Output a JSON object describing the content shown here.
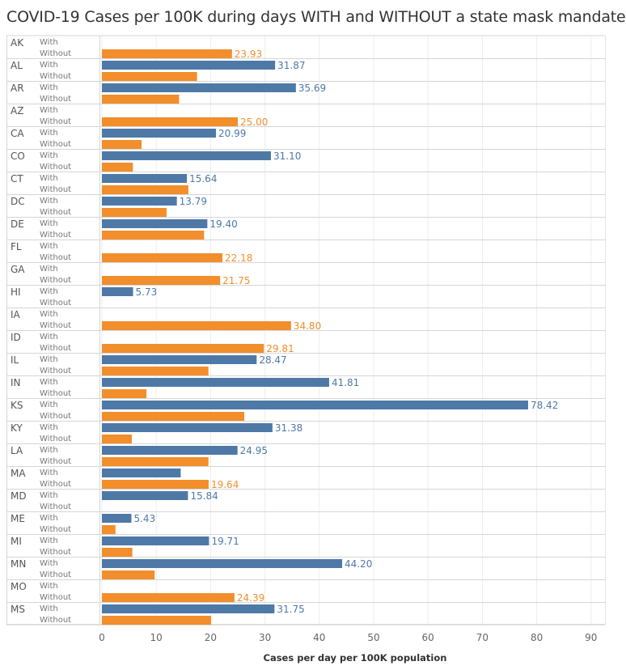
{
  "title": "COVID-19 Cases per 100K during days WITH and WITHOUT a state mask mandate",
  "chart_data": {
    "type": "bar",
    "orientation": "horizontal",
    "title": "COVID-19 Cases per 100K during days WITH and WITHOUT a state mask mandate",
    "xlabel": "Cases per day per 100K population",
    "xlim": [
      0,
      90
    ],
    "xticks": [
      "0",
      "10",
      "20",
      "30",
      "40",
      "50",
      "60",
      "70",
      "80",
      "90"
    ],
    "row_labels": [
      "With",
      "Without"
    ],
    "grid": true,
    "colors": {
      "with": "#4e79a7",
      "without": "#f28e2b"
    },
    "states": [
      {
        "name": "AK",
        "with": null,
        "without": 23.93,
        "with_label": "",
        "without_label": "23.93"
      },
      {
        "name": "AL",
        "with": 31.87,
        "without": 17.5,
        "with_label": "31.87",
        "without_label": ""
      },
      {
        "name": "AR",
        "with": 35.69,
        "without": 14.2,
        "with_label": "35.69",
        "without_label": ""
      },
      {
        "name": "AZ",
        "with": null,
        "without": 25.0,
        "with_label": "",
        "without_label": "25.00"
      },
      {
        "name": "CA",
        "with": 20.99,
        "without": 7.3,
        "with_label": "20.99",
        "without_label": ""
      },
      {
        "name": "CO",
        "with": 31.1,
        "without": 5.7,
        "with_label": "31.10",
        "without_label": ""
      },
      {
        "name": "CT",
        "with": 15.64,
        "without": 15.9,
        "with_label": "15.64",
        "without_label": ""
      },
      {
        "name": "DC",
        "with": 13.79,
        "without": 11.9,
        "with_label": "13.79",
        "without_label": ""
      },
      {
        "name": "DE",
        "with": 19.4,
        "without": 18.8,
        "with_label": "19.40",
        "without_label": ""
      },
      {
        "name": "FL",
        "with": null,
        "without": 22.18,
        "with_label": "",
        "without_label": "22.18"
      },
      {
        "name": "GA",
        "with": null,
        "without": 21.75,
        "with_label": "",
        "without_label": "21.75"
      },
      {
        "name": "HI",
        "with": 5.73,
        "without": null,
        "with_label": "5.73",
        "without_label": ""
      },
      {
        "name": "IA",
        "with": null,
        "without": 34.8,
        "with_label": "",
        "without_label": "34.80"
      },
      {
        "name": "ID",
        "with": null,
        "without": 29.81,
        "with_label": "",
        "without_label": "29.81"
      },
      {
        "name": "IL",
        "with": 28.47,
        "without": 19.6,
        "with_label": "28.47",
        "without_label": ""
      },
      {
        "name": "IN",
        "with": 41.81,
        "without": 8.2,
        "with_label": "41.81",
        "without_label": ""
      },
      {
        "name": "KS",
        "with": 78.42,
        "without": 26.2,
        "with_label": "78.42",
        "without_label": ""
      },
      {
        "name": "KY",
        "with": 31.38,
        "without": 5.5,
        "with_label": "31.38",
        "without_label": ""
      },
      {
        "name": "LA",
        "with": 24.95,
        "without": 19.6,
        "with_label": "24.95",
        "without_label": ""
      },
      {
        "name": "MA",
        "with": 14.5,
        "without": 19.64,
        "with_label": "",
        "without_label": "19.64"
      },
      {
        "name": "MD",
        "with": 15.84,
        "without": null,
        "with_label": "15.84",
        "without_label": ""
      },
      {
        "name": "ME",
        "with": 5.43,
        "without": 2.5,
        "with_label": "5.43",
        "without_label": ""
      },
      {
        "name": "MI",
        "with": 19.71,
        "without": 5.6,
        "with_label": "19.71",
        "without_label": ""
      },
      {
        "name": "MN",
        "with": 44.2,
        "without": 9.7,
        "with_label": "44.20",
        "without_label": ""
      },
      {
        "name": "MO",
        "with": null,
        "without": 24.39,
        "with_label": "",
        "without_label": "24.39"
      },
      {
        "name": "MS",
        "with": 31.75,
        "without": 20.1,
        "with_label": "31.75",
        "without_label": ""
      }
    ]
  }
}
